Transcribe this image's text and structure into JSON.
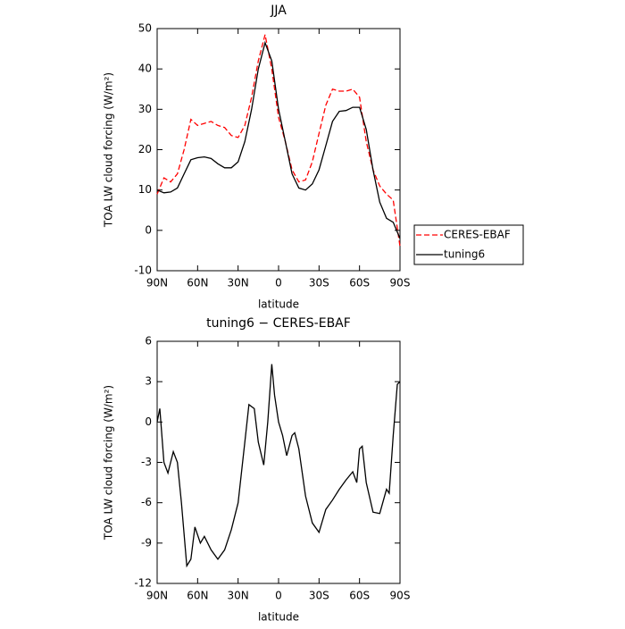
{
  "chart_data": [
    {
      "type": "line",
      "title": "JJA",
      "x_label": "latitude",
      "y_label": "TOA LW cloud forcing (W/m²)",
      "x": [
        90,
        85,
        80,
        75,
        70,
        65,
        60,
        55,
        50,
        45,
        40,
        35,
        30,
        25,
        20,
        15,
        10,
        5,
        0,
        -5,
        -10,
        -15,
        -20,
        -25,
        -30,
        -35,
        -40,
        -45,
        -50,
        -55,
        -60,
        -65,
        -70,
        -75,
        -80,
        -85,
        -90
      ],
      "series": [
        {
          "name": "CERES-EBAF",
          "color": "#ff0000",
          "dash": true,
          "values": [
            9,
            13,
            12,
            14,
            20,
            27.5,
            26,
            26.5,
            27,
            26,
            25.5,
            23.5,
            23,
            26,
            33,
            42,
            48.5,
            40,
            28,
            22,
            15,
            12,
            12.5,
            17,
            24,
            31,
            35,
            34.5,
            34.5,
            35,
            33,
            22,
            15,
            11,
            9,
            7.5,
            -4
          ]
        },
        {
          "name": "tuning6",
          "color": "#000000",
          "dash": false,
          "values": [
            10,
            9.3,
            9.5,
            10.5,
            14,
            17.5,
            18,
            18.2,
            17.8,
            16.5,
            15.5,
            15.5,
            17,
            22,
            30,
            40,
            46.5,
            42,
            30,
            22,
            14,
            10.5,
            10,
            11.5,
            15,
            21,
            27,
            29.5,
            29.7,
            30.5,
            30.5,
            25,
            15,
            7,
            3,
            2,
            -2
          ]
        }
      ],
      "xlim": [
        90,
        -90
      ],
      "xticks": [
        {
          "value": 90,
          "label": "90N"
        },
        {
          "value": 60,
          "label": "60N"
        },
        {
          "value": 30,
          "label": "30N"
        },
        0,
        {
          "value": -30,
          "label": "30S"
        },
        {
          "value": -60,
          "label": "60S"
        },
        {
          "value": -90,
          "label": "90S"
        }
      ],
      "ylim": [
        -10,
        50
      ],
      "yticks": [
        -10,
        0,
        10,
        20,
        30,
        40,
        50
      ],
      "legend": "right"
    },
    {
      "type": "line",
      "title": "tuning6 − CERES-EBAF",
      "x_label": "latitude",
      "y_label": "TOA LW cloud forcing (W/m²)",
      "x": [
        90,
        88,
        85,
        82,
        78,
        75,
        72,
        68,
        65,
        62,
        58,
        55,
        50,
        45,
        40,
        35,
        30,
        25,
        22,
        18,
        15,
        11,
        8,
        5,
        3,
        0,
        -3,
        -6,
        -10,
        -12,
        -15,
        -20,
        -25,
        -30,
        -35,
        -40,
        -45,
        -50,
        -55,
        -58,
        -60,
        -62,
        -65,
        -70,
        -75,
        -80,
        -82,
        -85,
        -88,
        -90
      ],
      "series": [
        {
          "color": "#000000",
          "dash": false,
          "values": [
            0,
            1,
            -3,
            -3.8,
            -2.2,
            -3,
            -6,
            -10.7,
            -10.2,
            -7.8,
            -9,
            -8.5,
            -9.5,
            -10.2,
            -9.5,
            -8,
            -6,
            -1.5,
            1.3,
            1,
            -1.5,
            -3.2,
            0,
            4.3,
            2,
            0,
            -1,
            -2.5,
            -1,
            -0.8,
            -2,
            -5.5,
            -7.5,
            -8.2,
            -6.5,
            -5.8,
            -5,
            -4.3,
            -3.7,
            -4.5,
            -2,
            -1.8,
            -4.5,
            -6.7,
            -6.8,
            -5,
            -5.3,
            -1,
            2.8,
            3
          ]
        }
      ],
      "xlim": [
        90,
        -90
      ],
      "xticks": [
        {
          "value": 90,
          "label": "90N"
        },
        {
          "value": 60,
          "label": "60N"
        },
        {
          "value": 30,
          "label": "30N"
        },
        0,
        {
          "value": -30,
          "label": "30S"
        },
        {
          "value": -60,
          "label": "60S"
        },
        {
          "value": -90,
          "label": "90S"
        }
      ],
      "ylim": [
        -12,
        6
      ],
      "yticks": [
        -12,
        -9,
        -6,
        -3,
        0,
        3,
        6
      ]
    }
  ]
}
